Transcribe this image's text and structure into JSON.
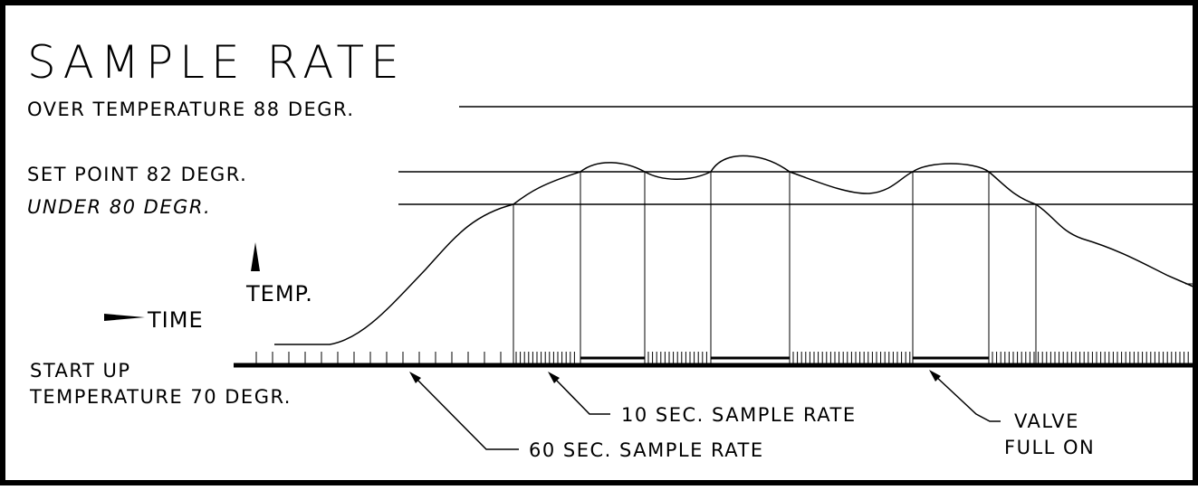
{
  "title": "SAMPLE RATE",
  "labels": {
    "over": "OVER TEMPERATURE  88 DEGR.",
    "set_point": "SET POINT 82 DEGR.",
    "under": "UNDER  80 DEGR.",
    "temp": "TEMP.",
    "time": "TIME",
    "startup_line1": "START UP",
    "startup_line2": "TEMPERATURE 70 DEGR."
  },
  "callouts": {
    "ten_sec": "10 SEC. SAMPLE RATE",
    "sixty_sec": "60 SEC. SAMPLE RATE",
    "valve_line1": "VALVE",
    "valve_line2": "FULL ON"
  }
}
